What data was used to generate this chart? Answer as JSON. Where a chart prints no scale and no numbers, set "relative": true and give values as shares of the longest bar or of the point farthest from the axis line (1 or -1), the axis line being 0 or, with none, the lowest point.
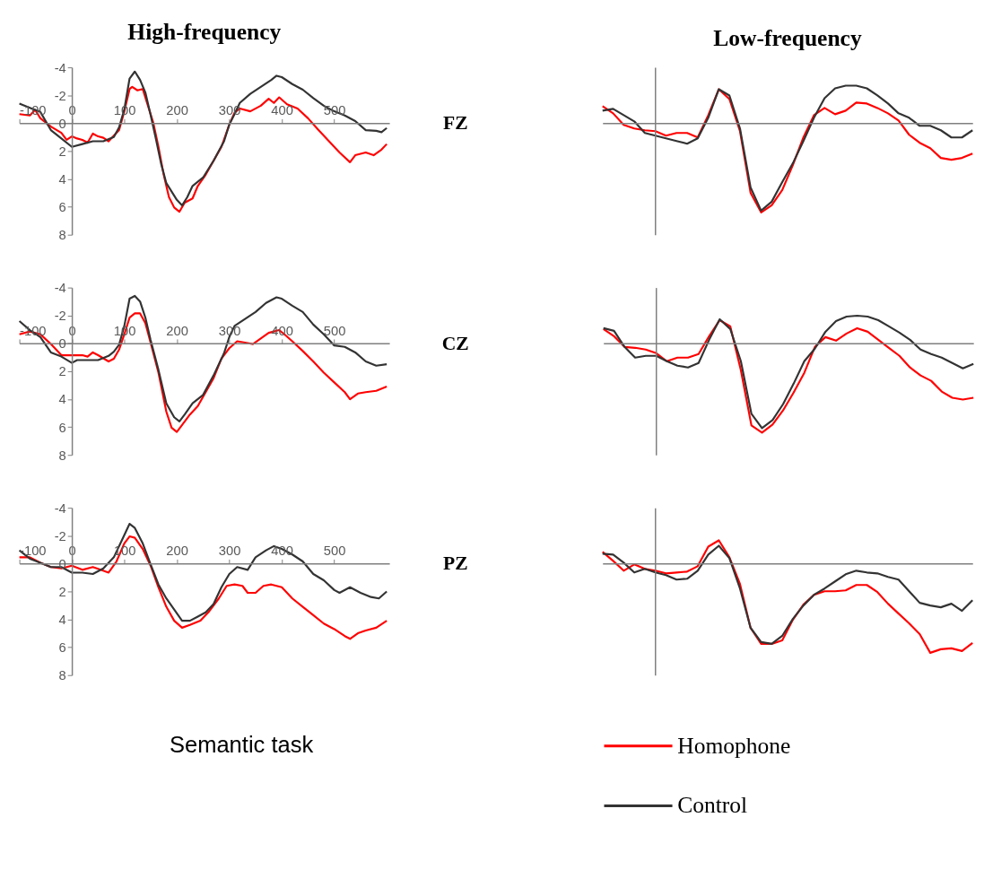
{
  "chart_data": [
    {
      "type": "line",
      "title": "High-frequency",
      "annotations": [
        "FZ"
      ],
      "xlim": [
        -100,
        605
      ],
      "ylim": [
        8,
        -4
      ],
      "xticks": [
        -100,
        0,
        100,
        200,
        300,
        400,
        500
      ],
      "yticks": [
        -4,
        -2,
        0,
        2,
        4,
        6,
        8
      ],
      "legend": false,
      "series": [
        {
          "color": "#ff0000",
          "x": [
            -100,
            -80,
            -70,
            -60,
            -40,
            -20,
            -10,
            0,
            10,
            20,
            30,
            40,
            50,
            60,
            70,
            80,
            90,
            100,
            110,
            115,
            125,
            135,
            145,
            155,
            165,
            175,
            185,
            195,
            205,
            215,
            230,
            240,
            255,
            270,
            285,
            300,
            310,
            320,
            340,
            360,
            375,
            385,
            395,
            410,
            430,
            450,
            470,
            490,
            510,
            530,
            540,
            560,
            575,
            590,
            600
          ],
          "values": [
            -0.65,
            -0.55,
            -0.95,
            -0.35,
            0.25,
            0.7,
            1.2,
            0.95,
            1.1,
            1.2,
            1.4,
            0.75,
            0.95,
            1.05,
            1.3,
            0.9,
            0.5,
            -0.85,
            -2.45,
            -2.6,
            -2.35,
            -2.45,
            -1.25,
            -0.05,
            1.7,
            3.7,
            5.3,
            6.05,
            6.35,
            5.7,
            5.4,
            4.5,
            3.7,
            2.7,
            1.7,
            0.1,
            -0.75,
            -1.05,
            -0.85,
            -1.25,
            -1.75,
            -1.45,
            -1.85,
            -1.35,
            -1.05,
            -0.35,
            0.5,
            1.3,
            2.1,
            2.8,
            2.3,
            2.1,
            2.3,
            1.9,
            1.5
          ]
        },
        {
          "color": "#333333",
          "x": [
            -100,
            -80,
            -60,
            -40,
            -20,
            0,
            20,
            40,
            60,
            80,
            90,
            100,
            110,
            120,
            130,
            140,
            150,
            160,
            170,
            180,
            200,
            210,
            220,
            230,
            250,
            270,
            290,
            300,
            310,
            320,
            340,
            360,
            380,
            390,
            400,
            420,
            440,
            460,
            480,
            500,
            520,
            540,
            560,
            580,
            590,
            600
          ],
          "values": [
            -1.4,
            -1.1,
            -0.8,
            0.5,
            1.1,
            1.7,
            1.5,
            1.3,
            1.3,
            1.0,
            0.3,
            -1.0,
            -3.2,
            -3.7,
            -3.1,
            -2.2,
            -0.6,
            1.1,
            2.9,
            4.3,
            5.5,
            5.9,
            5.3,
            4.5,
            3.9,
            2.7,
            1.3,
            0.1,
            -0.65,
            -1.45,
            -2.1,
            -2.6,
            -3.1,
            -3.4,
            -3.3,
            -2.8,
            -2.4,
            -1.8,
            -1.25,
            -0.85,
            -0.55,
            -0.15,
            0.5,
            0.55,
            0.65,
            0.35
          ]
        }
      ]
    },
    {
      "type": "line",
      "title": "Low-frequency",
      "relative": true,
      "categories": [
        null,
        null,
        null,
        null,
        null,
        null,
        null,
        null,
        null,
        null,
        null,
        null,
        null,
        null,
        null,
        null,
        null,
        null,
        null,
        null,
        null,
        null,
        null,
        null,
        null,
        null,
        null,
        null,
        null,
        null,
        null,
        null,
        null,
        null,
        null,
        null
      ],
      "legend": false,
      "series": [
        {
          "color": "#ff0000",
          "values": [
            0.19,
            0.11,
            -0.02,
            -0.06,
            -0.08,
            -0.09,
            -0.14,
            -0.11,
            -0.11,
            -0.16,
            0.09,
            0.38,
            0.27,
            -0.09,
            -0.78,
            -1,
            -0.92,
            -0.75,
            -0.47,
            -0.16,
            0.09,
            0.17,
            0.1,
            0.14,
            0.23,
            0.22,
            0.17,
            0.11,
            0.03,
            -0.13,
            -0.22,
            -0.28,
            -0.39,
            -0.41,
            -0.39,
            -0.34
          ]
        },
        {
          "color": "#333333",
          "values": [
            0.14,
            0.16,
            0.09,
            0.02,
            -0.11,
            -0.14,
            -0.17,
            -0.2,
            -0.23,
            -0.17,
            0.06,
            0.38,
            0.31,
            -0.06,
            -0.72,
            -0.98,
            -0.88,
            -0.66,
            -0.45,
            -0.2,
            0.06,
            0.28,
            0.39,
            0.42,
            0.42,
            0.39,
            0.31,
            0.22,
            0.11,
            0.06,
            -0.03,
            -0.03,
            -0.08,
            -0.16,
            -0.16,
            -0.08
          ]
        }
      ]
    },
    {
      "type": "line",
      "annotations": [
        "CZ"
      ],
      "xlim": [
        -100,
        605
      ],
      "ylim": [
        8,
        -4
      ],
      "xticks": [
        -100,
        0,
        100,
        200,
        300,
        400,
        500
      ],
      "yticks": [
        -4,
        -2,
        0,
        2,
        4,
        6,
        8
      ],
      "legend": false,
      "series": [
        {
          "color": "#ff0000",
          "x": [
            -100,
            -80,
            -60,
            -40,
            -20,
            0,
            20,
            30,
            40,
            50,
            70,
            80,
            90,
            100,
            110,
            120,
            130,
            140,
            150,
            165,
            180,
            190,
            200,
            210,
            225,
            240,
            255,
            270,
            285,
            300,
            315,
            330,
            345,
            360,
            375,
            395,
            405,
            420,
            440,
            460,
            480,
            500,
            520,
            530,
            545,
            560,
            580,
            600
          ],
          "values": [
            -0.65,
            -0.85,
            -0.65,
            0.05,
            0.85,
            0.85,
            0.85,
            0.95,
            0.65,
            0.85,
            1.3,
            1.1,
            0.45,
            -0.65,
            -1.85,
            -2.15,
            -2.15,
            -1.45,
            -0.05,
            2.1,
            4.9,
            6.05,
            6.35,
            5.85,
            5.1,
            4.5,
            3.5,
            2.5,
            1.1,
            0.35,
            -0.15,
            -0.05,
            0.05,
            -0.35,
            -0.75,
            -0.95,
            -0.65,
            -0.15,
            0.55,
            1.3,
            2.1,
            2.8,
            3.5,
            4.0,
            3.6,
            3.5,
            3.4,
            3.1
          ]
        },
        {
          "color": "#333333",
          "x": [
            -100,
            -80,
            -60,
            -40,
            -20,
            0,
            10,
            30,
            50,
            70,
            80,
            90,
            100,
            110,
            120,
            130,
            140,
            150,
            165,
            180,
            195,
            205,
            215,
            230,
            250,
            270,
            290,
            300,
            310,
            330,
            350,
            370,
            390,
            400,
            420,
            440,
            460,
            480,
            500,
            520,
            540,
            560,
            580,
            600
          ],
          "values": [
            -1.6,
            -0.95,
            -0.45,
            0.65,
            0.95,
            1.4,
            1.2,
            1.2,
            1.2,
            0.9,
            0.6,
            0.1,
            -1.25,
            -3.2,
            -3.4,
            -3.0,
            -1.85,
            -0.25,
            1.9,
            4.3,
            5.3,
            5.6,
            5.1,
            4.3,
            3.7,
            2.3,
            0.7,
            -0.45,
            -1.25,
            -1.75,
            -2.25,
            -2.9,
            -3.3,
            -3.2,
            -2.7,
            -2.25,
            -1.35,
            -0.65,
            0.15,
            0.25,
            0.65,
            1.3,
            1.6,
            1.5
          ]
        }
      ]
    },
    {
      "type": "line",
      "relative": true,
      "categories": [
        null,
        null,
        null,
        null,
        null,
        null,
        null,
        null,
        null,
        null,
        null,
        null,
        null,
        null,
        null,
        null,
        null,
        null,
        null,
        null,
        null,
        null,
        null,
        null,
        null,
        null,
        null,
        null,
        null,
        null,
        null,
        null,
        null,
        null,
        null,
        null
      ],
      "legend": false,
      "series": [
        {
          "color": "#ff0000",
          "values": [
            0.16,
            0.08,
            -0.04,
            -0.05,
            -0.07,
            -0.11,
            -0.2,
            -0.16,
            -0.16,
            -0.12,
            0.08,
            0.26,
            0.19,
            -0.3,
            -0.92,
            -1,
            -0.91,
            -0.75,
            -0.55,
            -0.33,
            -0.04,
            0.07,
            0.03,
            0.11,
            0.17,
            0.13,
            0.04,
            -0.05,
            -0.14,
            -0.27,
            -0.36,
            -0.42,
            -0.54,
            -0.61,
            -0.63,
            -0.61
          ]
        },
        {
          "color": "#333333",
          "values": [
            0.17,
            0.14,
            -0.04,
            -0.16,
            -0.14,
            -0.14,
            -0.2,
            -0.25,
            -0.27,
            -0.22,
            0.04,
            0.27,
            0.16,
            -0.2,
            -0.79,
            -0.95,
            -0.86,
            -0.68,
            -0.45,
            -0.2,
            -0.06,
            0.13,
            0.25,
            0.3,
            0.31,
            0.3,
            0.26,
            0.19,
            0.12,
            0.04,
            -0.07,
            -0.12,
            -0.16,
            -0.22,
            -0.28,
            -0.23
          ]
        }
      ]
    },
    {
      "type": "line",
      "annotations": [
        "PZ",
        "Semantic task"
      ],
      "xlim": [
        -100,
        605
      ],
      "ylim": [
        8,
        -4
      ],
      "xticks": [
        -100,
        0,
        100,
        200,
        300,
        400,
        500
      ],
      "yticks": [
        -4,
        -2,
        0,
        2,
        4,
        6,
        8
      ],
      "legend": false,
      "series": [
        {
          "color": "#ff0000",
          "x": [
            -100,
            -80,
            -60,
            -40,
            -20,
            0,
            20,
            40,
            55,
            70,
            85,
            100,
            110,
            120,
            135,
            150,
            165,
            180,
            195,
            210,
            225,
            245,
            260,
            280,
            295,
            310,
            325,
            335,
            350,
            365,
            380,
            400,
            420,
            440,
            460,
            480,
            500,
            520,
            530,
            545,
            560,
            580,
            600
          ],
          "values": [
            -0.45,
            -0.45,
            -0.05,
            0.25,
            0.35,
            0.15,
            0.45,
            0.25,
            0.45,
            0.65,
            -0.15,
            -1.45,
            -1.95,
            -1.85,
            -1.05,
            0.15,
            1.7,
            3.1,
            4.1,
            4.6,
            4.4,
            4.1,
            3.5,
            2.5,
            1.6,
            1.5,
            1.6,
            2.1,
            2.1,
            1.6,
            1.5,
            1.7,
            2.5,
            3.1,
            3.7,
            4.3,
            4.7,
            5.2,
            5.4,
            5.0,
            4.8,
            4.6,
            4.1
          ]
        },
        {
          "color": "#333333",
          "x": [
            -100,
            -80,
            -60,
            -40,
            -20,
            0,
            20,
            40,
            60,
            80,
            95,
            110,
            120,
            135,
            150,
            165,
            180,
            195,
            210,
            225,
            240,
            255,
            270,
            285,
            300,
            315,
            335,
            350,
            370,
            385,
            400,
            420,
            440,
            460,
            480,
            500,
            510,
            530,
            550,
            570,
            585,
            600
          ],
          "values": [
            -0.95,
            -0.35,
            -0.05,
            0.25,
            0.25,
            0.65,
            0.65,
            0.75,
            0.35,
            -0.45,
            -1.65,
            -2.85,
            -2.55,
            -1.45,
            0.05,
            1.5,
            2.5,
            3.3,
            4.1,
            4.1,
            3.8,
            3.5,
            2.9,
            1.7,
            0.75,
            0.25,
            0.45,
            -0.45,
            -0.95,
            -1.25,
            -1.05,
            -0.65,
            -0.15,
            0.75,
            1.2,
            1.9,
            2.1,
            1.7,
            2.1,
            2.4,
            2.5,
            2.0
          ]
        }
      ]
    },
    {
      "type": "line",
      "relative": true,
      "categories": [
        null,
        null,
        null,
        null,
        null,
        null,
        null,
        null,
        null,
        null,
        null,
        null,
        null,
        null,
        null,
        null,
        null,
        null,
        null,
        null,
        null,
        null,
        null,
        null,
        null,
        null,
        null,
        null,
        null,
        null,
        null,
        null,
        null,
        null,
        null,
        null
      ],
      "legend": "bottom",
      "series": [
        {
          "name": "Homophone",
          "color": "#ff0000",
          "values": [
            0.13,
            0.03,
            -0.08,
            -0.01,
            -0.06,
            -0.08,
            -0.11,
            -0.1,
            -0.09,
            -0.03,
            0.19,
            0.26,
            0.07,
            -0.23,
            -0.72,
            -0.9,
            -0.9,
            -0.86,
            -0.63,
            -0.46,
            -0.35,
            -0.31,
            -0.31,
            -0.3,
            -0.24,
            -0.24,
            -0.32,
            -0.45,
            -0.56,
            -0.67,
            -0.79,
            -1,
            -0.96,
            -0.95,
            -0.98,
            -0.89
          ]
        },
        {
          "name": "Control",
          "color": "#333333",
          "values": [
            0.11,
            0.1,
            0.01,
            -0.1,
            -0.06,
            -0.1,
            -0.13,
            -0.18,
            -0.17,
            -0.08,
            0.1,
            0.2,
            0.06,
            -0.28,
            -0.72,
            -0.88,
            -0.9,
            -0.81,
            -0.62,
            -0.47,
            -0.35,
            -0.28,
            -0.2,
            -0.12,
            -0.08,
            -0.1,
            -0.11,
            -0.15,
            -0.18,
            -0.31,
            -0.44,
            -0.47,
            -0.49,
            -0.45,
            -0.53,
            -0.41
          ]
        }
      ]
    }
  ]
}
